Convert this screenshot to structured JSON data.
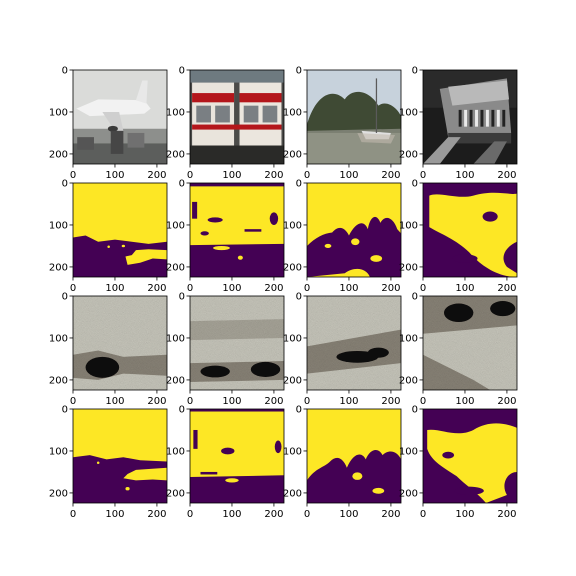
{
  "chart_data": {
    "type": "image-grid",
    "rows": 4,
    "cols": 4,
    "image_size": [
      224,
      224
    ],
    "xticks": [
      0,
      100,
      200
    ],
    "yticks": [
      0,
      100,
      200
    ],
    "xtick_labels": [
      "0",
      "100",
      "200"
    ],
    "ytick_labels": [
      "0",
      "100",
      "200"
    ],
    "row_contents": [
      "photo",
      "binary-mask",
      "noisy-saliency",
      "binary-mask"
    ],
    "column_subjects": [
      "airplane",
      "train",
      "boat",
      "locomotive"
    ],
    "colors": {
      "mask_on": "#fde725",
      "mask_off": "#440154",
      "noise_light": "#c9c8bd",
      "noise_mid": "#8a8478",
      "noise_dark": "#0e0a0a"
    }
  }
}
